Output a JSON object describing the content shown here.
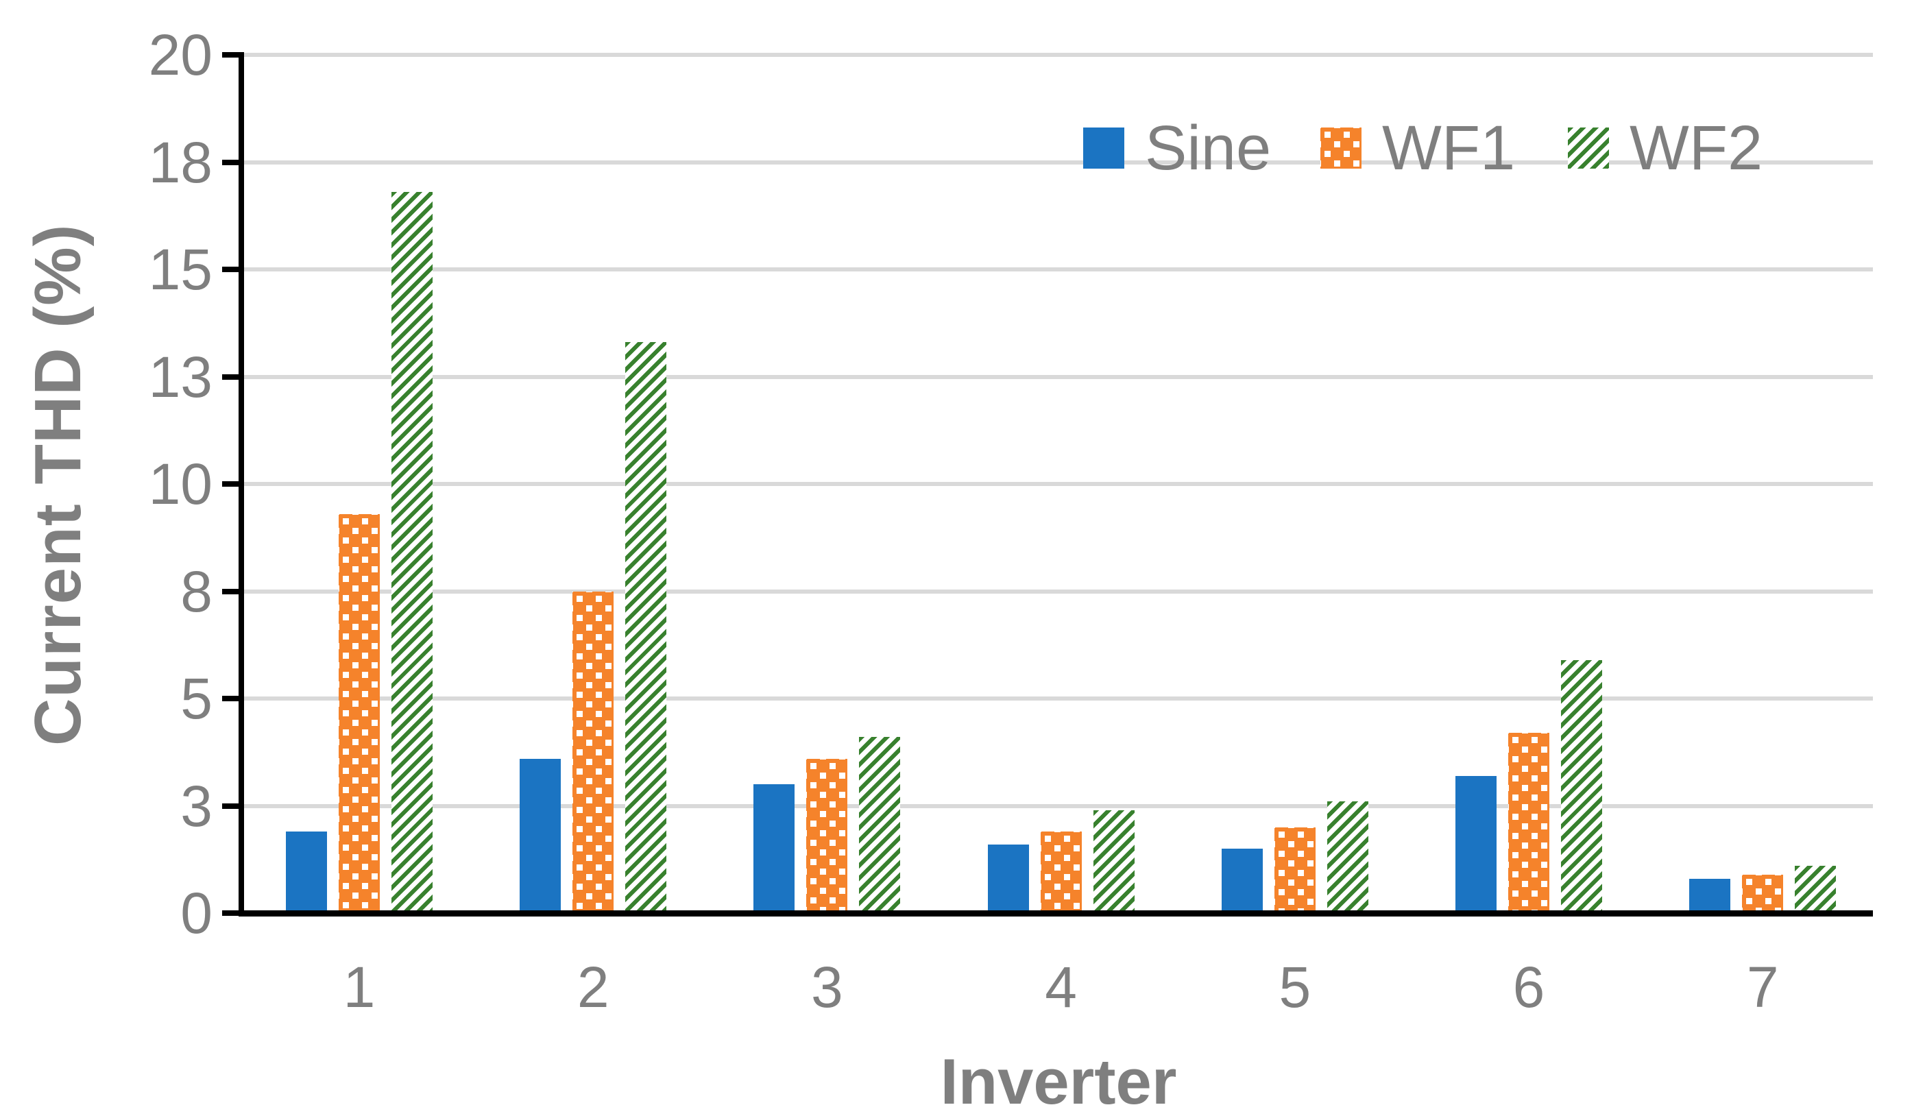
{
  "chart_data": {
    "type": "bar",
    "title": "",
    "xlabel": "Inverter",
    "ylabel": "Current THD (%)",
    "categories": [
      "1",
      "2",
      "3",
      "4",
      "5",
      "6",
      "7"
    ],
    "series": [
      {
        "name": "Sine",
        "pattern": "solid",
        "color": "#1B74C2",
        "values": [
          1.9,
          3.6,
          3.0,
          1.6,
          1.5,
          3.2,
          0.8
        ]
      },
      {
        "name": "WF1",
        "pattern": "white-dots",
        "color": "#F5832B",
        "values": [
          9.3,
          7.5,
          3.6,
          1.9,
          2.0,
          4.2,
          0.9
        ]
      },
      {
        "name": "WF2",
        "pattern": "diagonal-stripes",
        "color": "#38812E",
        "values": [
          16.8,
          13.3,
          4.1,
          2.4,
          2.6,
          5.9,
          1.1
        ]
      }
    ],
    "ylim": [
      0,
      20
    ],
    "ytick_step": 2.5,
    "ytick_labels": [
      "0",
      "3",
      "5",
      "8",
      "10",
      "13",
      "15",
      "18",
      "20"
    ],
    "grid": true,
    "legend_position": "top-right"
  },
  "colors": {
    "bar_blue": "#1B74C2",
    "bar_orange": "#F5832B",
    "bar_green": "#38812E",
    "gridline": "#D9D9D9",
    "axis": "#000000",
    "text": "#7F7F7F",
    "background": "#FFFFFF"
  }
}
